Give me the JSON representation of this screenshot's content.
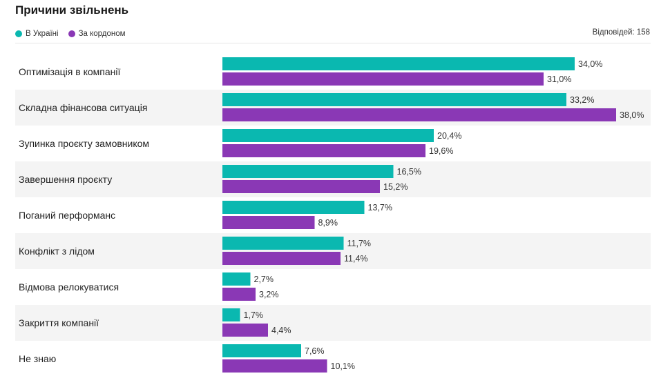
{
  "header": {
    "title": "Причини звільнень",
    "responses": "Відповідей: 158"
  },
  "colors": {
    "ukraine": "#0ab8b0",
    "abroad": "#8a38b5",
    "row_stripe": "#f4f4f4"
  },
  "chart_data": {
    "type": "bar",
    "orientation": "horizontal",
    "title": "Причини звільнень",
    "xlim": [
      0,
      38
    ],
    "grid": false,
    "legend_position": "top-left",
    "categories": [
      "Оптимізація в компанії",
      "Складна фінансова ситуація",
      "Зупинка проєкту замовником",
      "Завершення проєкту",
      "Поганий перформанс",
      "Конфлікт з лідом",
      "Відмова релокуватися",
      "Закриття компанії",
      "Не знаю"
    ],
    "series": [
      {
        "name": "В Україні",
        "values": [
          34.0,
          33.2,
          20.4,
          16.5,
          13.7,
          11.7,
          2.7,
          1.7,
          7.6
        ],
        "labels": [
          "34,0%",
          "33,2%",
          "20,4%",
          "16,5%",
          "13,7%",
          "11,7%",
          "2,7%",
          "1,7%",
          "7,6%"
        ]
      },
      {
        "name": "За кордоном",
        "values": [
          31.0,
          38.0,
          19.6,
          15.2,
          8.9,
          11.4,
          3.2,
          4.4,
          10.1
        ],
        "labels": [
          "31,0%",
          "38,0%",
          "19,6%",
          "15,2%",
          "8,9%",
          "11,4%",
          "3,2%",
          "4,4%",
          "10,1%"
        ]
      }
    ]
  }
}
